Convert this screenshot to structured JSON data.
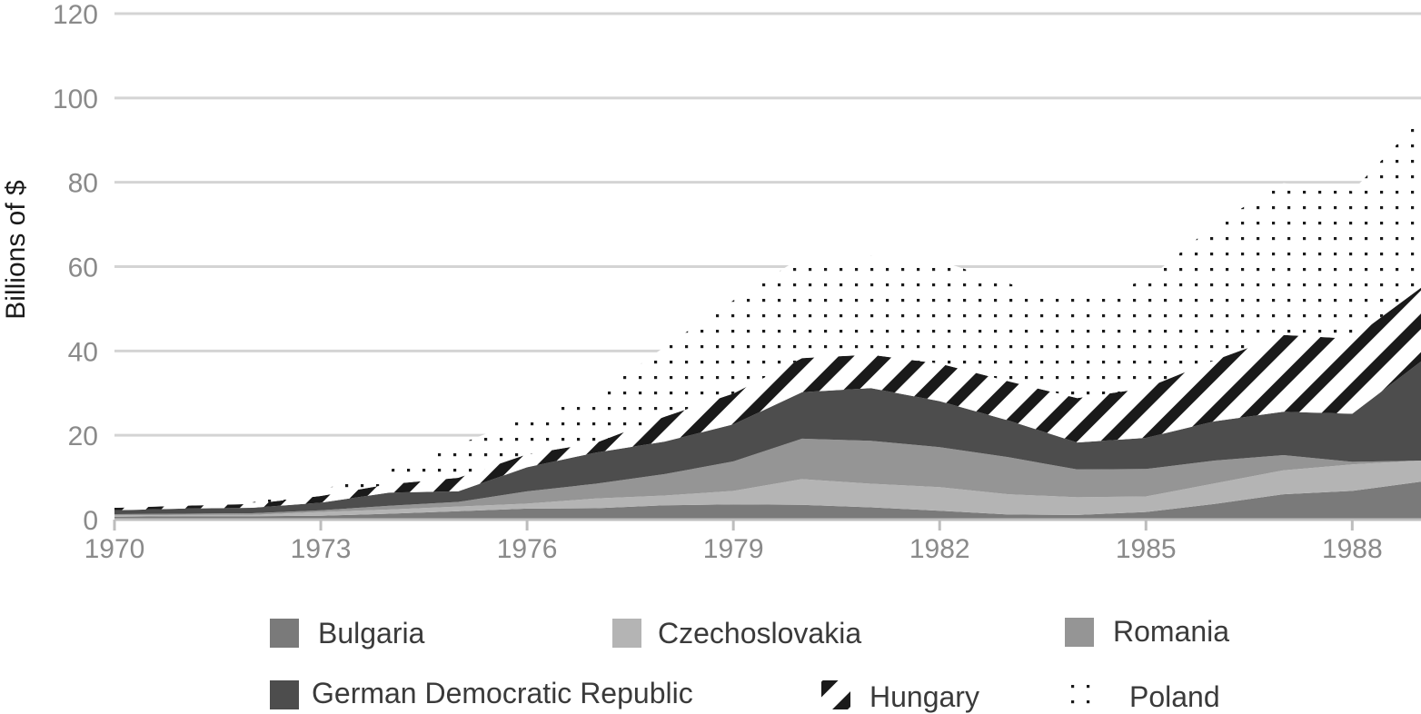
{
  "chart_data": {
    "type": "area",
    "stacked": true,
    "title": "",
    "xlabel": "",
    "ylabel": "Billions of $",
    "x": [
      1970,
      1971,
      1972,
      1973,
      1974,
      1975,
      1976,
      1977,
      1978,
      1979,
      1980,
      1981,
      1982,
      1983,
      1984,
      1985,
      1986,
      1987,
      1988,
      1989
    ],
    "x_ticks": [
      "1970",
      "1973",
      "1976",
      "1979",
      "1982",
      "1985",
      "1988"
    ],
    "y_ticks": [
      "0",
      "20",
      "40",
      "60",
      "80",
      "100",
      "120"
    ],
    "ylim": [
      0,
      120
    ],
    "grid": true,
    "legend_position": "bottom",
    "series": [
      {
        "name": "Bulgaria",
        "color": "#7a7a7a",
        "pattern": "solid",
        "values": [
          0.7,
          0.8,
          0.8,
          0.9,
          1.4,
          2.0,
          2.6,
          2.7,
          3.4,
          3.6,
          3.5,
          2.9,
          2.1,
          1.2,
          1.1,
          1.8,
          3.7,
          6.0,
          6.8,
          9.0
        ]
      },
      {
        "name": "Czechoslovakia",
        "color": "#b4b4b4",
        "pattern": "solid",
        "values": [
          0.3,
          0.3,
          0.3,
          0.9,
          1.0,
          1.1,
          1.2,
          2.3,
          2.3,
          3.2,
          6.1,
          5.6,
          5.6,
          4.8,
          4.2,
          3.7,
          4.9,
          5.7,
          6.3,
          5.0
        ]
      },
      {
        "name": "Romania",
        "color": "#959595",
        "pattern": "solid",
        "values": [
          0.3,
          0.3,
          0.4,
          0.4,
          0.9,
          1.1,
          2.9,
          3.5,
          5.1,
          7.0,
          9.6,
          10.2,
          9.5,
          8.8,
          6.6,
          6.5,
          5.4,
          3.6,
          0.6,
          0.0
        ]
      },
      {
        "name": "German Democratic Republic",
        "color": "#4d4d4d",
        "pattern": "solid",
        "values": [
          0.9,
          1.2,
          1.3,
          1.8,
          3.1,
          2.5,
          5.7,
          7.4,
          7.7,
          8.8,
          11.0,
          12.5,
          10.9,
          8.7,
          6.4,
          7.4,
          9.3,
          10.3,
          11.4,
          23.5
        ]
      },
      {
        "name": "Hungary",
        "color": "#1a1a1a",
        "pattern": "diagonal-stripes",
        "values": [
          0.6,
          0.7,
          0.9,
          1.6,
          2.0,
          3.2,
          3.1,
          2.3,
          5.9,
          7.3,
          8.1,
          7.9,
          8.9,
          9.3,
          10.5,
          11.8,
          14.5,
          18.2,
          17.8,
          17.5
        ]
      },
      {
        "name": "Poland",
        "color": "#1a1a1a",
        "pattern": "dots",
        "values": [
          0.3,
          0.3,
          0.4,
          1.4,
          3.4,
          7.9,
          8.7,
          11.1,
          16.6,
          22.1,
          24.0,
          23.5,
          24.4,
          23.2,
          23.5,
          25.5,
          32.2,
          36.0,
          35.0,
          40.0
        ]
      }
    ]
  }
}
